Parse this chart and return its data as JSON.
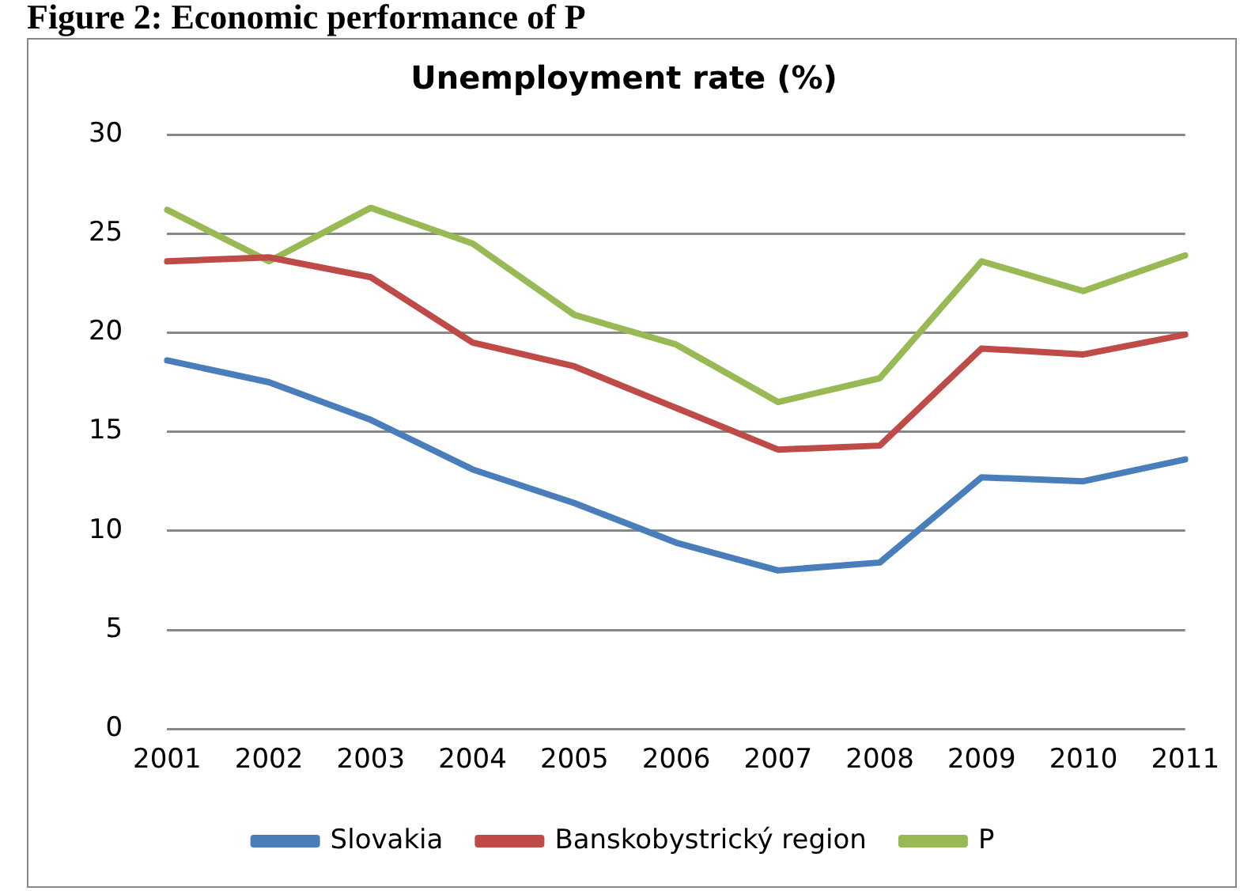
{
  "chart_data": {
    "type": "line",
    "title": "Unemployment rate (%)",
    "annotations": [
      "Figure 2: Economic performance of P"
    ],
    "categories": [
      "2001",
      "2002",
      "2003",
      "2004",
      "2005",
      "2006",
      "2007",
      "2008",
      "2009",
      "2010",
      "2011"
    ],
    "series": [
      {
        "name": "Slovakia",
        "color": "#4a7ebb",
        "values": [
          18.6,
          17.5,
          15.6,
          13.1,
          11.4,
          9.4,
          8.0,
          8.4,
          12.7,
          12.5,
          13.6
        ]
      },
      {
        "name": "Banskobystrický region",
        "color": "#be4b48",
        "values": [
          23.6,
          23.8,
          22.8,
          19.5,
          18.3,
          16.2,
          14.1,
          14.3,
          19.2,
          18.9,
          19.9
        ]
      },
      {
        "name": "P",
        "color": "#98b954",
        "values": [
          26.2,
          23.6,
          26.3,
          24.5,
          20.9,
          19.4,
          16.5,
          17.7,
          23.6,
          22.1,
          23.9
        ]
      }
    ],
    "ylim": [
      0,
      30
    ],
    "yticks": [
      0,
      5,
      10,
      15,
      20,
      25,
      30
    ],
    "grid": "y",
    "legend": "bottom",
    "marker": "none",
    "line_style": "solid"
  }
}
